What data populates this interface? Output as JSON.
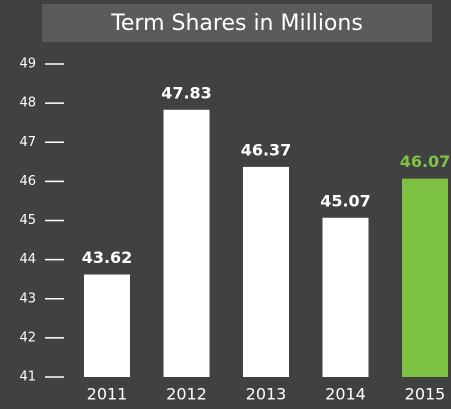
{
  "chart_data": {
    "type": "bar",
    "title": "Term Shares in Millions",
    "categories": [
      "2011",
      "2012",
      "2013",
      "2014",
      "2015"
    ],
    "values": [
      43.62,
      47.83,
      46.37,
      45.07,
      46.07
    ],
    "colors": [
      "#ffffff",
      "#ffffff",
      "#ffffff",
      "#ffffff",
      "#7dc242"
    ],
    "ylim": [
      41,
      49
    ],
    "yticks": [
      41,
      42,
      43,
      44,
      45,
      46,
      47,
      48,
      49
    ]
  }
}
